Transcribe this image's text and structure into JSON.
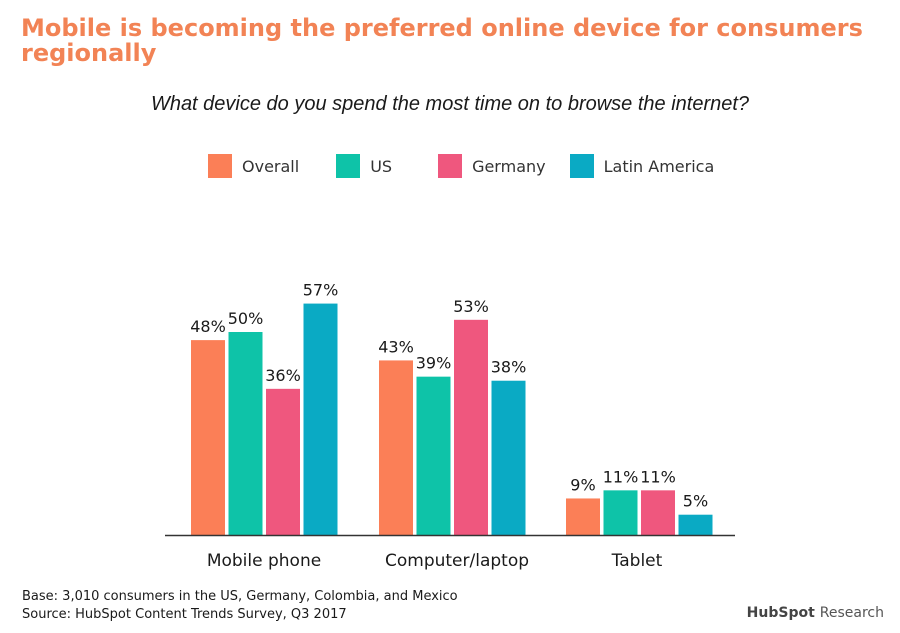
{
  "title": "Mobile is becoming the preferred online device for consumers regionally",
  "subtitle": "What device do you spend the most time on to browse the internet?",
  "colors": {
    "title": "#f28355",
    "overall": "#fb7f57",
    "us": "#0ec3a8",
    "germany": "#ef577e",
    "latin_america": "#0aaac4",
    "axis": "#333333"
  },
  "footnotes": {
    "base": "Base: 3,010 consumers in the US, Germany, Colombia, and Mexico",
    "source": "Source: HubSpot Content Trends Survey, Q3 2017"
  },
  "brand": {
    "name": "HubSpot",
    "label": "Research"
  },
  "chart_data": {
    "type": "bar",
    "title": "Mobile is becoming the preferred online device for consumers regionally",
    "subtitle": "What device do you spend the most time on to browse the internet?",
    "categories": [
      "Mobile phone",
      "Computer/laptop",
      "Tablet"
    ],
    "series": [
      {
        "name": "Overall",
        "color": "#fb7f57",
        "values": [
          48,
          43,
          9
        ],
        "labels": [
          "48%",
          "43%",
          "9%"
        ]
      },
      {
        "name": "US",
        "color": "#0ec3a8",
        "values": [
          50,
          39,
          11
        ],
        "labels": [
          "50%",
          "39%",
          "11%"
        ]
      },
      {
        "name": "Germany",
        "color": "#ef577e",
        "values": [
          36,
          53,
          11
        ],
        "labels": [
          "36%",
          "53%",
          "11%"
        ]
      },
      {
        "name": "Latin America",
        "color": "#0aaac4",
        "values": [
          57,
          38,
          5
        ],
        "labels": [
          "57%",
          "38%",
          "5%"
        ]
      }
    ],
    "legend_position": "top",
    "grid": false,
    "ylim": [
      0,
      100
    ],
    "unit": "%"
  }
}
